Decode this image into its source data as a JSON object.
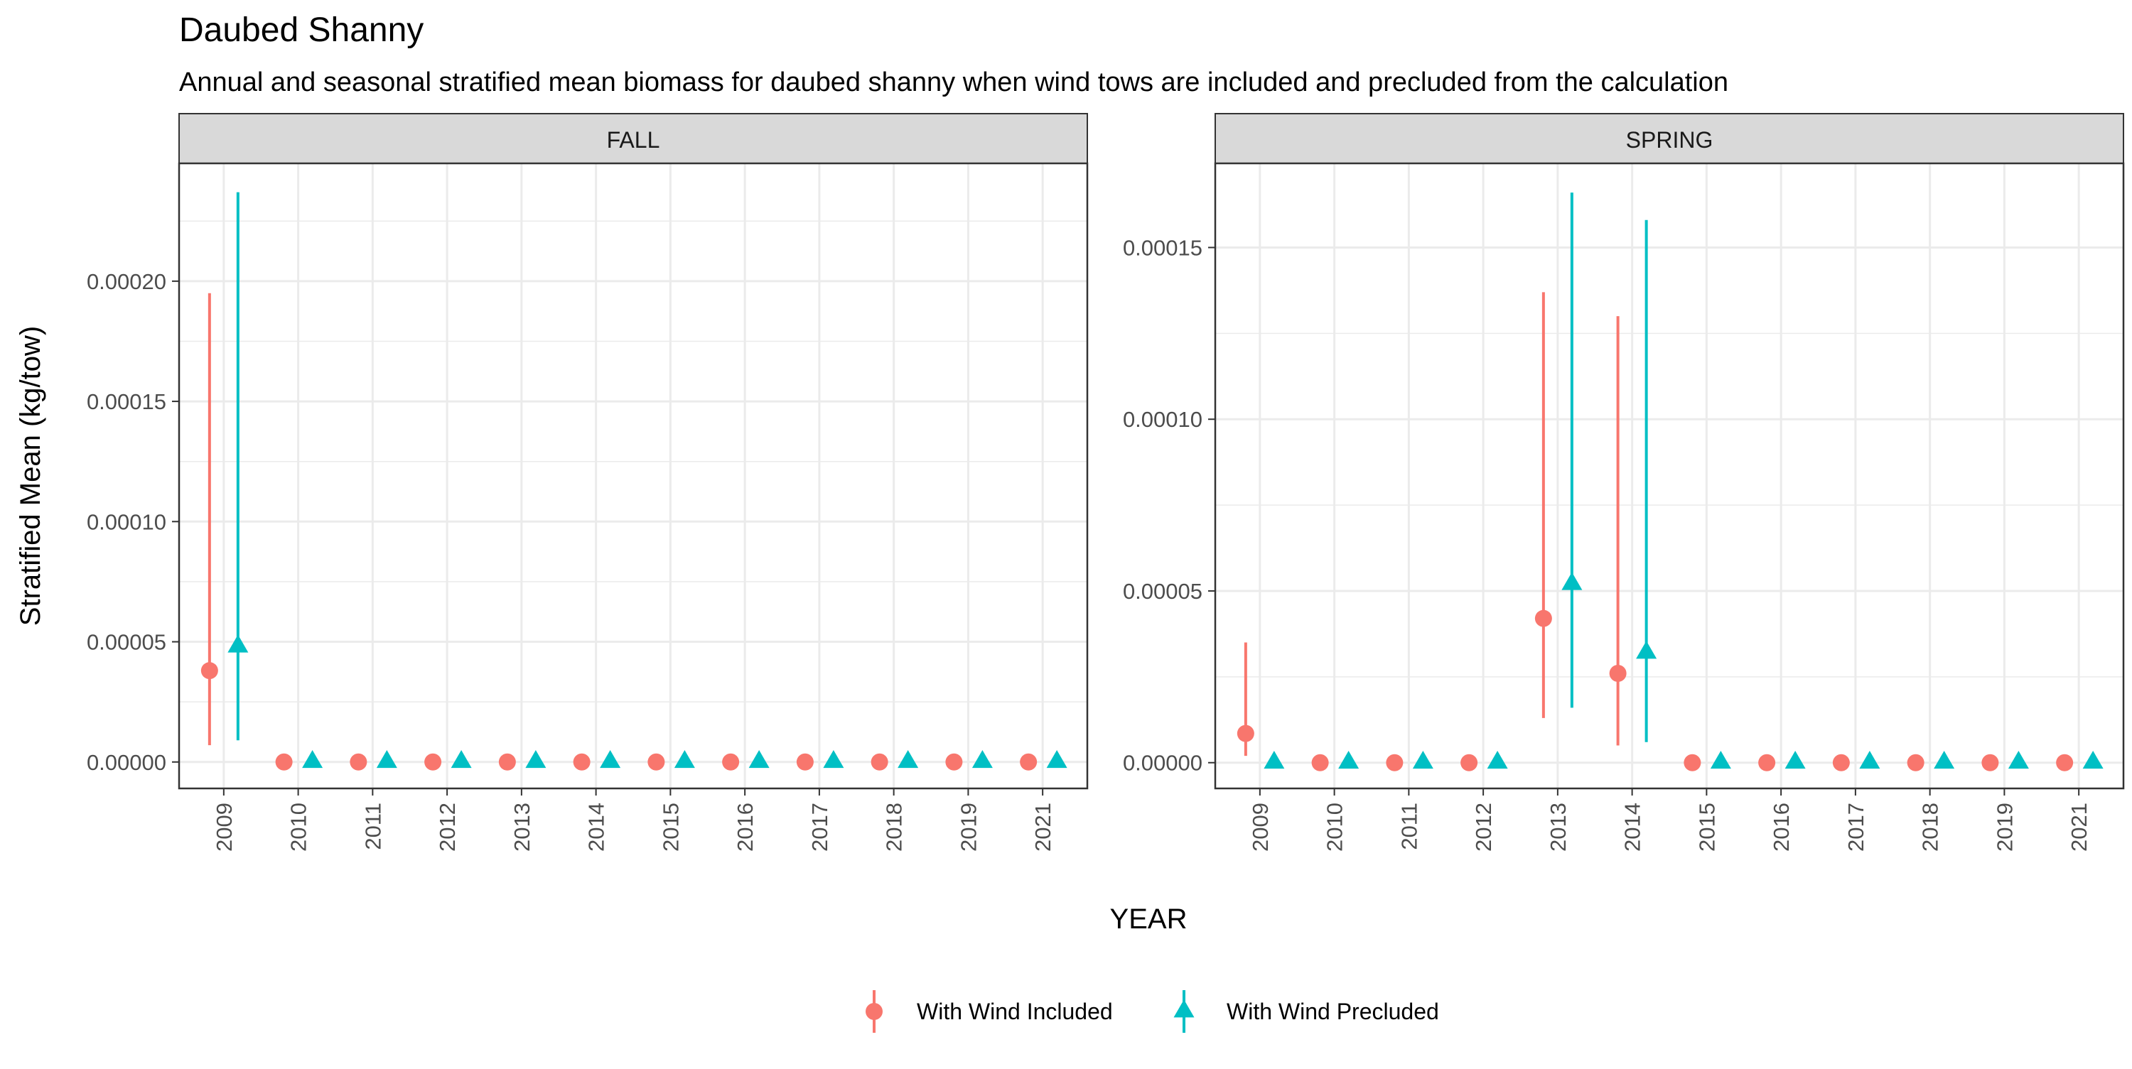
{
  "chart_data": {
    "type": "scatter",
    "title": "Daubed Shanny",
    "subtitle": "Annual and seasonal stratified mean biomass for daubed shanny when wind tows are included and precluded from the calculation",
    "xlabel": "YEAR",
    "ylabel": "Stratified Mean (kg/tow)",
    "categories": [
      "2009",
      "2010",
      "2011",
      "2012",
      "2013",
      "2014",
      "2015",
      "2016",
      "2017",
      "2018",
      "2019",
      "2021"
    ],
    "legend_position": "bottom",
    "grid": true,
    "colors": {
      "included": "#F8766D",
      "precluded": "#00BFC4"
    },
    "legend": [
      {
        "name": "With Wind Included",
        "shape": "circle",
        "color": "#F8766D"
      },
      {
        "name": "With Wind Precluded",
        "shape": "triangle",
        "color": "#00BFC4"
      }
    ],
    "panels": [
      {
        "label": "FALL",
        "ylim": [
          -1.1e-05,
          0.000249
        ],
        "yticks": [
          0,
          5e-05,
          0.0001,
          0.00015,
          0.0002
        ],
        "ytick_labels": [
          "0.00000",
          "0.00005",
          "0.00010",
          "0.00015",
          "0.00020"
        ],
        "series": [
          {
            "name": "With Wind Included",
            "values": [
              3.8e-05,
              0,
              0,
              0,
              0,
              0,
              0,
              0,
              0,
              0,
              0,
              0
            ],
            "lower": [
              7e-06,
              0,
              0,
              0,
              0,
              0,
              0,
              0,
              0,
              0,
              0,
              0
            ],
            "upper": [
              0.000195,
              0,
              0,
              0,
              0,
              0,
              0,
              0,
              0,
              0,
              0,
              0
            ]
          },
          {
            "name": "With Wind Precluded",
            "values": [
              4.8e-05,
              0,
              0,
              0,
              0,
              0,
              0,
              0,
              0,
              0,
              0,
              0
            ],
            "lower": [
              9e-06,
              0,
              0,
              0,
              0,
              0,
              0,
              0,
              0,
              0,
              0,
              0
            ],
            "upper": [
              0.000237,
              0,
              0,
              0,
              0,
              0,
              0,
              0,
              0,
              0,
              0,
              0
            ]
          }
        ]
      },
      {
        "label": "SPRING",
        "ylim": [
          -7.5e-06,
          0.0001745
        ],
        "yticks": [
          0,
          5e-05,
          0.0001,
          0.00015
        ],
        "ytick_labels": [
          "0.00000",
          "0.00005",
          "0.00010",
          "0.00015"
        ],
        "series": [
          {
            "name": "With Wind Included",
            "values": [
              8.5e-06,
              0,
              0,
              0,
              4.2e-05,
              2.6e-05,
              0,
              0,
              0,
              0,
              0,
              0
            ],
            "lower": [
              2e-06,
              0,
              0,
              0,
              1.3e-05,
              5e-06,
              0,
              0,
              0,
              0,
              0,
              0
            ],
            "upper": [
              3.5e-05,
              0,
              0,
              0,
              0.000137,
              0.00013,
              0,
              0,
              0,
              0,
              0,
              0
            ]
          },
          {
            "name": "With Wind Precluded",
            "values": [
              0,
              0,
              0,
              0,
              5.2e-05,
              3.2e-05,
              0,
              0,
              0,
              0,
              0,
              0
            ],
            "lower": [
              0,
              0,
              0,
              0,
              1.6e-05,
              6e-06,
              0,
              0,
              0,
              0,
              0,
              0
            ],
            "upper": [
              0,
              0,
              0,
              0,
              0.000166,
              0.000158,
              0,
              0,
              0,
              0,
              0,
              0
            ]
          }
        ]
      }
    ]
  }
}
